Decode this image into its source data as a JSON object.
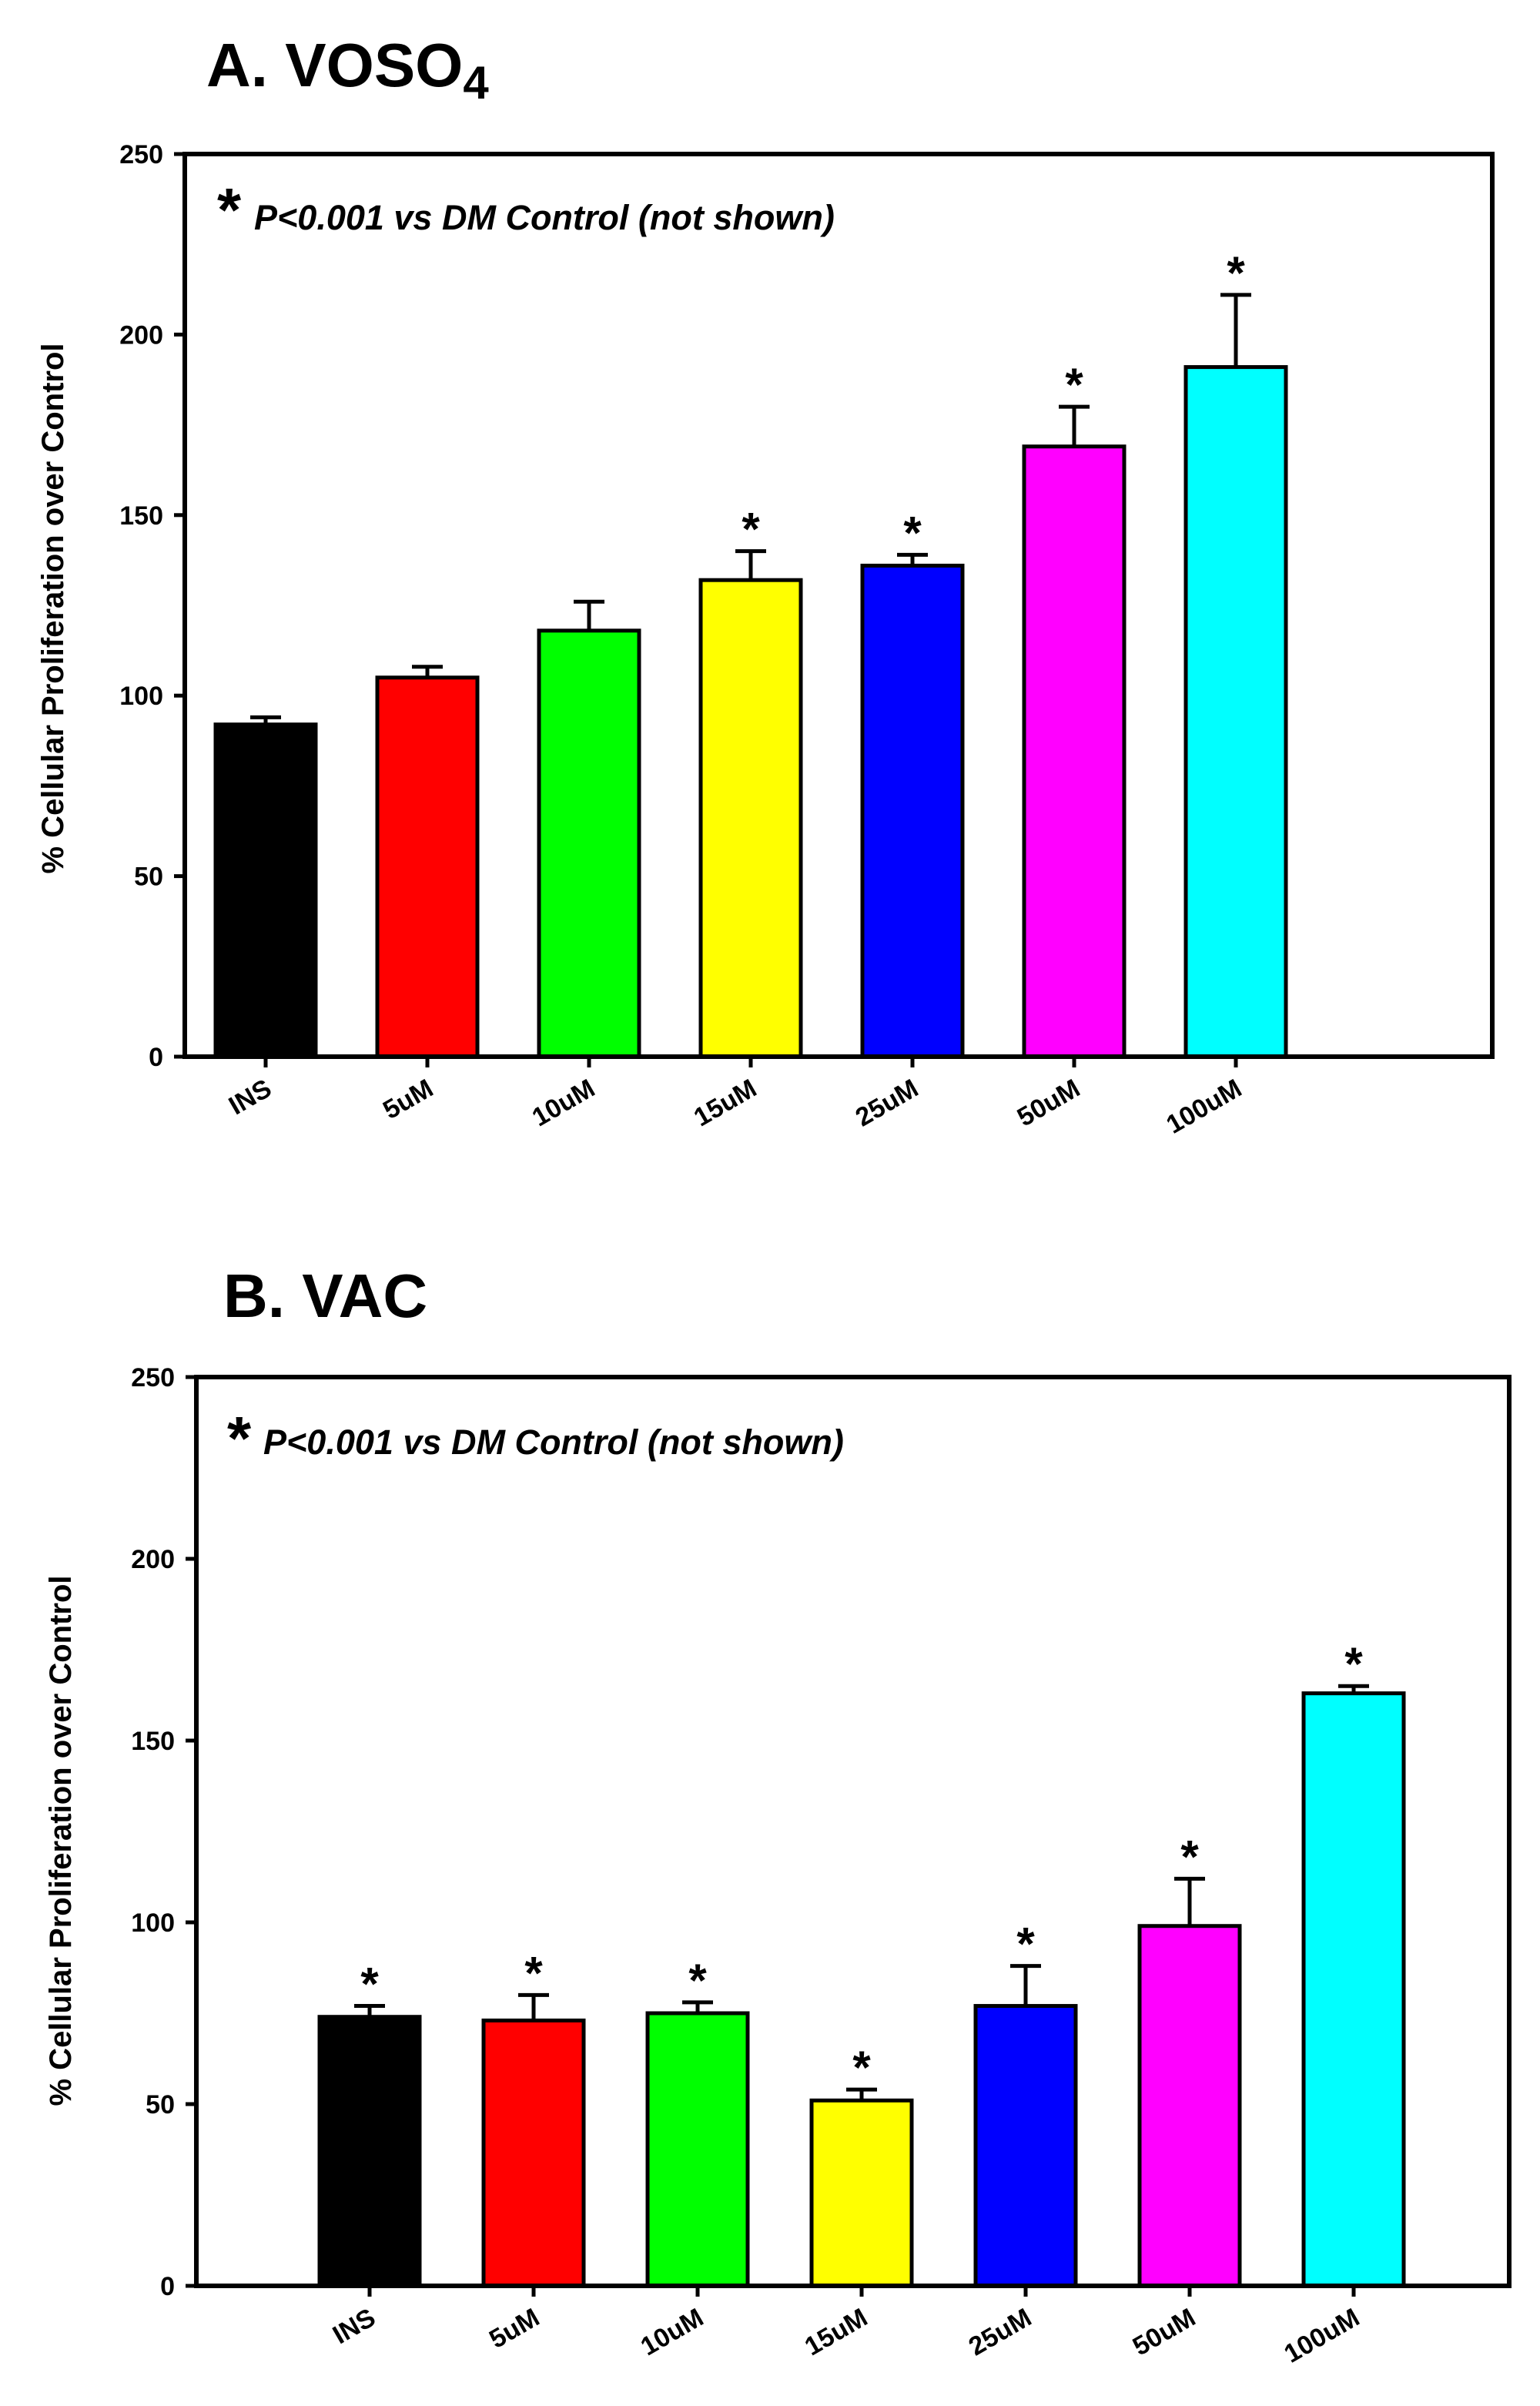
{
  "chart_data": [
    {
      "type": "bar",
      "panel_label": "A.",
      "title_main": "VOSO",
      "title_sub": "4",
      "ylabel": "% Cellular Proliferation over Control",
      "xlabel": "",
      "ylim": [
        0,
        250
      ],
      "yticks": [
        "0",
        "50",
        "100",
        "150",
        "200",
        "250"
      ],
      "categories": [
        "INS",
        "5uM",
        "10uM",
        "15uM",
        "25uM",
        "50uM",
        "100uM"
      ],
      "values": [
        92,
        105,
        118,
        132,
        136,
        169,
        191
      ],
      "errors": [
        2,
        3,
        8,
        8,
        3,
        11,
        20
      ],
      "colors": [
        "#000000",
        "#ff0000",
        "#00ff00",
        "#ffff00",
        "#0000ff",
        "#ff00ff",
        "#00ffff"
      ],
      "significant": [
        false,
        false,
        false,
        true,
        true,
        true,
        true
      ],
      "star_symbol": "*",
      "annotation": "P<0.001 vs DM Control (not shown)"
    },
    {
      "type": "bar",
      "panel_label": "B.",
      "title_main": "VAC",
      "title_sub": "",
      "ylabel": "% Cellular Proliferation over Control",
      "xlabel": "",
      "ylim": [
        0,
        250
      ],
      "yticks": [
        "0",
        "50",
        "100",
        "150",
        "200",
        "250"
      ],
      "categories": [
        "INS",
        "5uM",
        "10uM",
        "15uM",
        "25uM",
        "50uM",
        "100uM"
      ],
      "values": [
        74,
        73,
        75,
        51,
        77,
        99,
        163
      ],
      "errors": [
        3,
        7,
        3,
        3,
        11,
        13,
        2
      ],
      "colors": [
        "#000000",
        "#ff0000",
        "#00ff00",
        "#ffff00",
        "#0000ff",
        "#ff00ff",
        "#00ffff"
      ],
      "significant": [
        true,
        true,
        true,
        true,
        true,
        true,
        true
      ],
      "star_symbol": "*",
      "annotation": "P<0.001 vs DM Control (not shown)"
    }
  ]
}
